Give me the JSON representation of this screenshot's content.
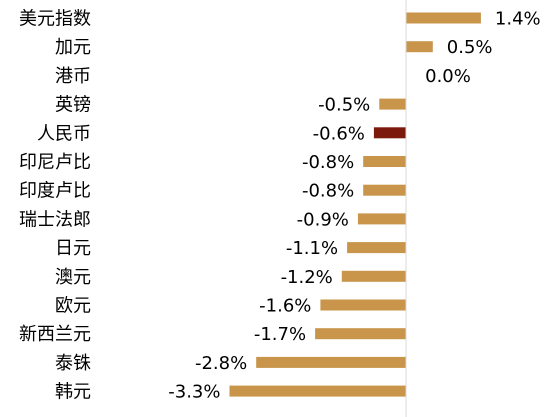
{
  "chart_data": {
    "type": "bar",
    "orientation": "horizontal",
    "categories": [
      "美元指数",
      "加元",
      "港币",
      "英镑",
      "人民币",
      "印尼卢比",
      "印度卢比",
      "瑞士法郎",
      "日元",
      "澳元",
      "欧元",
      "新西兰元",
      "泰铢",
      "韩元"
    ],
    "values": [
      1.4,
      0.5,
      0.0,
      -0.5,
      -0.6,
      -0.8,
      -0.8,
      -0.9,
      -1.1,
      -1.2,
      -1.6,
      -1.7,
      -2.8,
      -3.3
    ],
    "value_labels": [
      "1.4%",
      "0.5%",
      "0.0%",
      "-0.5%",
      "-0.6%",
      "-0.8%",
      "-0.8%",
      "-0.9%",
      "-1.1%",
      "-1.2%",
      "-1.6%",
      "-1.7%",
      "-2.8%",
      "-3.3%"
    ],
    "highlight_category": "人民币",
    "bar_color": "#C8954A",
    "highlight_color": "#7B1A0C",
    "axis_color": "#D9D9D9",
    "xlim": [
      -3.3,
      1.4
    ],
    "grid": false,
    "legend": "none"
  }
}
